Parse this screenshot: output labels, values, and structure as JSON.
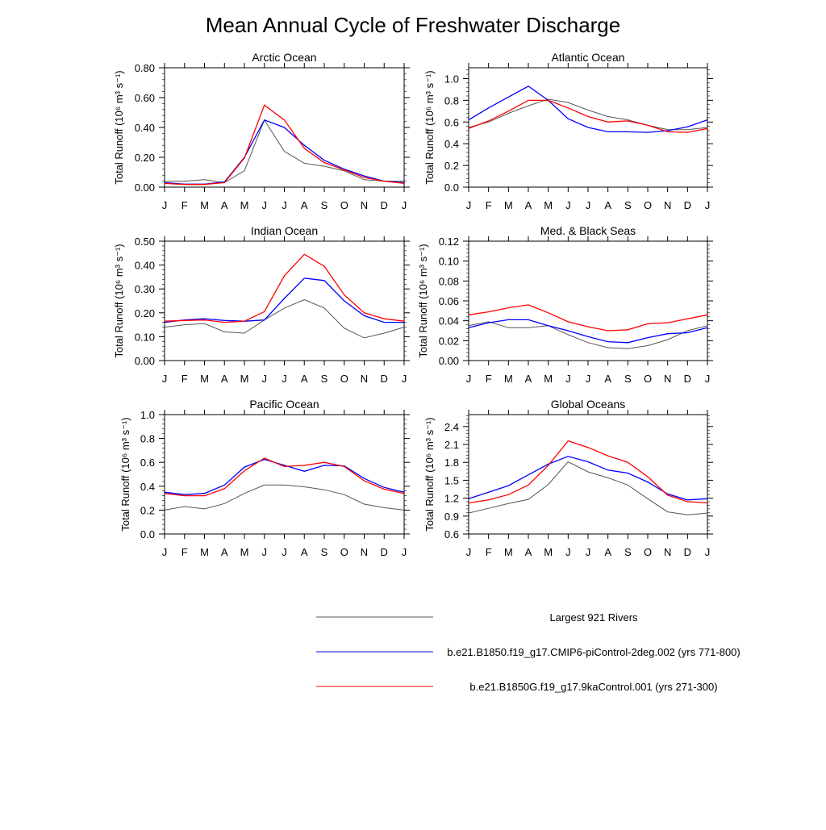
{
  "title": "Mean Annual Cycle of Freshwater Discharge",
  "colors": {
    "rivers": "#555555",
    "ctrl_2deg": "#0000ff",
    "ctrl_9ka": "#ff0000"
  },
  "legend": [
    {
      "label": "Largest 921 Rivers",
      "color": "#555555"
    },
    {
      "label": "b.e21.B1850.f19_g17.CMIP6-piControl-2deg.002 (yrs 771-800)",
      "color": "#0000ff"
    },
    {
      "label": "b.e21.B1850G.f19_g17.9kaControl.001 (yrs 271-300)",
      "color": "#ff0000"
    }
  ],
  "chart_data": [
    {
      "type": "line",
      "title": "Arctic Ocean",
      "ylabel": "Total Runoff (10⁶ m³ s⁻¹)",
      "categories": [
        "J",
        "F",
        "M",
        "A",
        "M",
        "J",
        "J",
        "A",
        "S",
        "O",
        "N",
        "D",
        "J"
      ],
      "ylim": [
        0,
        0.8
      ],
      "yticks": [
        "0.00",
        "0.20",
        "0.40",
        "0.60",
        "0.80"
      ],
      "ytick_values": [
        0,
        0.2,
        0.4,
        0.6,
        0.8
      ],
      "series": [
        {
          "name": "Largest 921 Rivers",
          "values": [
            0.04,
            0.04,
            0.05,
            0.03,
            0.11,
            0.45,
            0.24,
            0.16,
            0.14,
            0.11,
            0.05,
            0.04,
            0.04
          ]
        },
        {
          "name": "b.e21.B1850.f19_g17.CMIP6-piControl-2deg.002 (yrs 771-800)",
          "values": [
            0.03,
            0.02,
            0.02,
            0.035,
            0.2,
            0.45,
            0.4,
            0.28,
            0.18,
            0.12,
            0.075,
            0.04,
            0.03
          ]
        },
        {
          "name": "b.e21.B1850G.f19_g17.9kaControl.001 (yrs 271-300)",
          "values": [
            0.025,
            0.018,
            0.018,
            0.03,
            0.195,
            0.55,
            0.45,
            0.26,
            0.165,
            0.115,
            0.065,
            0.04,
            0.025
          ]
        }
      ]
    },
    {
      "type": "line",
      "title": "Atlantic Ocean",
      "ylabel": "Total Runoff (10⁶ m³ s⁻¹)",
      "categories": [
        "J",
        "F",
        "M",
        "A",
        "M",
        "J",
        "J",
        "A",
        "S",
        "O",
        "N",
        "D",
        "J"
      ],
      "ylim": [
        0,
        1.1
      ],
      "yticks": [
        "0.0",
        "0.2",
        "0.4",
        "0.6",
        "0.8",
        "1.0"
      ],
      "ytick_values": [
        0,
        0.2,
        0.4,
        0.6,
        0.8,
        1.0
      ],
      "series": [
        {
          "name": "Largest 921 Rivers",
          "values": [
            0.55,
            0.6,
            0.68,
            0.75,
            0.81,
            0.78,
            0.71,
            0.65,
            0.62,
            0.57,
            0.53,
            0.53,
            0.55
          ]
        },
        {
          "name": "b.e21.B1850.f19_g17.CMIP6-piControl-2deg.002 (yrs 771-800)",
          "values": [
            0.62,
            0.73,
            0.83,
            0.93,
            0.8,
            0.63,
            0.55,
            0.51,
            0.51,
            0.505,
            0.52,
            0.555,
            0.62
          ]
        },
        {
          "name": "b.e21.B1850G.f19_g17.9kaControl.001 (yrs 271-300)",
          "values": [
            0.54,
            0.61,
            0.7,
            0.8,
            0.8,
            0.73,
            0.65,
            0.6,
            0.61,
            0.57,
            0.51,
            0.505,
            0.54
          ]
        }
      ]
    },
    {
      "type": "line",
      "title": "Indian Ocean",
      "ylabel": "Total Runoff (10⁶ m³ s⁻¹)",
      "categories": [
        "J",
        "F",
        "M",
        "A",
        "M",
        "J",
        "J",
        "A",
        "S",
        "O",
        "N",
        "D",
        "J"
      ],
      "ylim": [
        0,
        0.5
      ],
      "yticks": [
        "0.00",
        "0.10",
        "0.20",
        "0.30",
        "0.40",
        "0.50"
      ],
      "ytick_values": [
        0,
        0.1,
        0.2,
        0.3,
        0.4,
        0.5
      ],
      "series": [
        {
          "name": "Largest 921 Rivers",
          "values": [
            0.14,
            0.15,
            0.155,
            0.12,
            0.115,
            0.17,
            0.22,
            0.255,
            0.22,
            0.135,
            0.095,
            0.115,
            0.14
          ]
        },
        {
          "name": "b.e21.B1850.f19_g17.CMIP6-piControl-2deg.002 (yrs 771-800)",
          "values": [
            0.16,
            0.17,
            0.175,
            0.168,
            0.165,
            0.17,
            0.26,
            0.345,
            0.335,
            0.25,
            0.188,
            0.16,
            0.16
          ]
        },
        {
          "name": "b.e21.B1850G.f19_g17.9kaControl.001 (yrs 271-300)",
          "values": [
            0.165,
            0.168,
            0.17,
            0.16,
            0.165,
            0.205,
            0.355,
            0.445,
            0.395,
            0.275,
            0.2,
            0.175,
            0.165
          ]
        }
      ]
    },
    {
      "type": "line",
      "title": "Med. & Black Seas",
      "ylabel": "Total Runoff (10⁶ m³ s⁻¹)",
      "categories": [
        "J",
        "F",
        "M",
        "A",
        "M",
        "J",
        "J",
        "A",
        "S",
        "O",
        "N",
        "D",
        "J"
      ],
      "ylim": [
        0,
        0.12
      ],
      "yticks": [
        "0.00",
        "0.02",
        "0.04",
        "0.06",
        "0.08",
        "0.10",
        "0.12"
      ],
      "ytick_values": [
        0,
        0.02,
        0.04,
        0.06,
        0.08,
        0.1,
        0.12
      ],
      "series": [
        {
          "name": "Largest 921 Rivers",
          "values": [
            0.035,
            0.039,
            0.033,
            0.033,
            0.035,
            0.026,
            0.018,
            0.013,
            0.012,
            0.015,
            0.021,
            0.03,
            0.035
          ]
        },
        {
          "name": "b.e21.B1850.f19_g17.CMIP6-piControl-2deg.002 (yrs 771-800)",
          "values": [
            0.033,
            0.038,
            0.041,
            0.041,
            0.035,
            0.03,
            0.024,
            0.019,
            0.018,
            0.023,
            0.027,
            0.028,
            0.033
          ]
        },
        {
          "name": "b.e21.B1850G.f19_g17.9kaControl.001 (yrs 271-300)",
          "values": [
            0.046,
            0.049,
            0.053,
            0.056,
            0.048,
            0.039,
            0.034,
            0.03,
            0.031,
            0.037,
            0.038,
            0.042,
            0.046
          ]
        }
      ]
    },
    {
      "type": "line",
      "title": "Pacific Ocean",
      "ylabel": "Total Runoff (10⁶ m³ s⁻¹)",
      "categories": [
        "J",
        "F",
        "M",
        "A",
        "M",
        "J",
        "J",
        "A",
        "S",
        "O",
        "N",
        "D",
        "J"
      ],
      "ylim": [
        0,
        1.0
      ],
      "yticks": [
        "0.0",
        "0.2",
        "0.4",
        "0.6",
        "0.8",
        "1.0"
      ],
      "ytick_values": [
        0,
        0.2,
        0.4,
        0.6,
        0.8,
        1.0
      ],
      "series": [
        {
          "name": "Largest 921 Rivers",
          "values": [
            0.2,
            0.23,
            0.21,
            0.255,
            0.34,
            0.41,
            0.41,
            0.395,
            0.37,
            0.33,
            0.25,
            0.22,
            0.2
          ]
        },
        {
          "name": "b.e21.B1850.f19_g17.CMIP6-piControl-2deg.002 (yrs 771-800)",
          "values": [
            0.35,
            0.33,
            0.34,
            0.41,
            0.56,
            0.625,
            0.575,
            0.525,
            0.575,
            0.57,
            0.465,
            0.39,
            0.35
          ]
        },
        {
          "name": "b.e21.B1850G.f19_g17.9kaControl.001 (yrs 271-300)",
          "values": [
            0.34,
            0.32,
            0.32,
            0.38,
            0.53,
            0.635,
            0.565,
            0.575,
            0.6,
            0.565,
            0.445,
            0.375,
            0.34
          ]
        }
      ]
    },
    {
      "type": "line",
      "title": "Global Oceans",
      "ylabel": "Total Runoff (10⁶ m³ s⁻¹)",
      "categories": [
        "J",
        "F",
        "M",
        "A",
        "M",
        "J",
        "J",
        "A",
        "S",
        "O",
        "N",
        "D",
        "J"
      ],
      "ylim": [
        0.6,
        2.6
      ],
      "yticks": [
        "0.6",
        "0.9",
        "1.2",
        "1.5",
        "1.8",
        "2.1",
        "2.4"
      ],
      "ytick_values": [
        0.6,
        0.9,
        1.2,
        1.5,
        1.8,
        2.1,
        2.4
      ],
      "series": [
        {
          "name": "Largest 921 Rivers",
          "values": [
            0.95,
            1.03,
            1.11,
            1.18,
            1.43,
            1.81,
            1.64,
            1.54,
            1.42,
            1.19,
            0.97,
            0.92,
            0.95
          ]
        },
        {
          "name": "b.e21.B1850.f19_g17.CMIP6-piControl-2deg.002 (yrs 771-800)",
          "values": [
            1.19,
            1.3,
            1.41,
            1.59,
            1.77,
            1.9,
            1.81,
            1.67,
            1.62,
            1.47,
            1.27,
            1.17,
            1.19
          ]
        },
        {
          "name": "b.e21.B1850G.f19_g17.9kaControl.001 (yrs 271-300)",
          "values": [
            1.12,
            1.17,
            1.26,
            1.42,
            1.75,
            2.16,
            2.05,
            1.91,
            1.8,
            1.56,
            1.25,
            1.14,
            1.12
          ]
        }
      ]
    }
  ]
}
